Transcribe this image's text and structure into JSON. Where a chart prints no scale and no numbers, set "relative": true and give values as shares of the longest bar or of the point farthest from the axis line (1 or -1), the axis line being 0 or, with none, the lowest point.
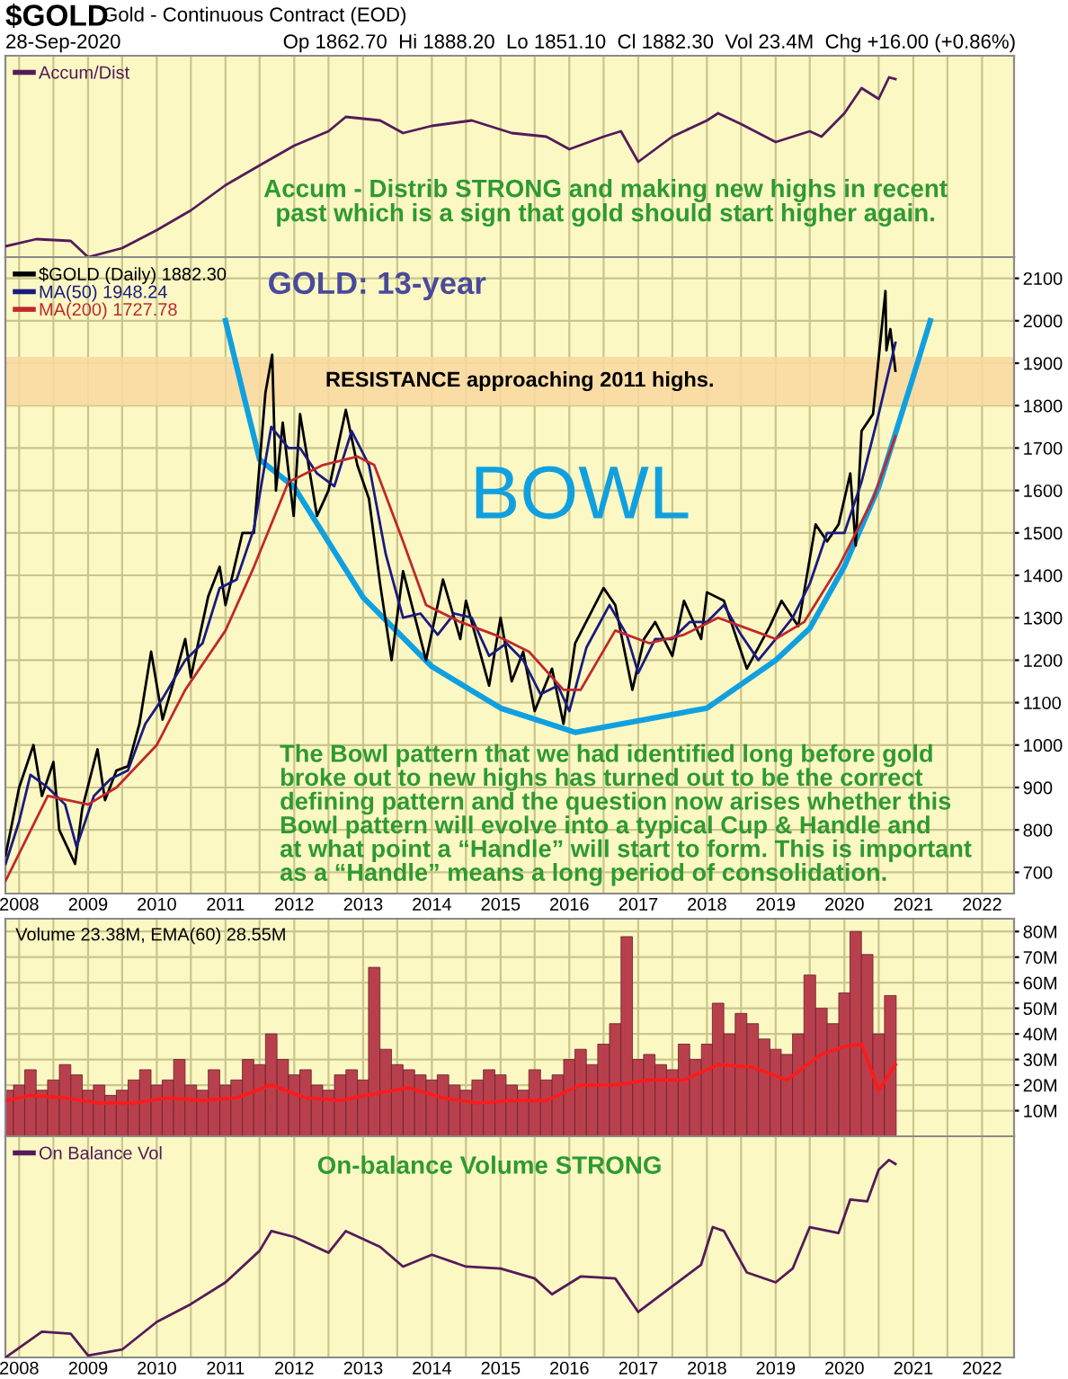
{
  "chart_data": [
    {
      "type": "line",
      "title": "$GOLD",
      "subtitle": "Gold - Continuous Contract (EOD)",
      "relative": true,
      "grid": "x",
      "legend": "top left",
      "tick_labels": false,
      "xticks": [
        {
          "value": "2008",
          "label": null
        },
        {
          "value": "2008-07",
          "label": null
        },
        {
          "value": "2009",
          "label": null
        },
        {
          "value": "2009-07",
          "label": null
        },
        {
          "value": "2010",
          "label": null
        },
        {
          "value": "2010-07",
          "label": null
        },
        {
          "value": "2011",
          "label": null
        },
        {
          "value": "2011-07",
          "label": null
        },
        {
          "value": "2012",
          "label": null
        },
        {
          "value": "2012-07",
          "label": null
        },
        {
          "value": "2013",
          "label": null
        },
        {
          "value": "2013-07",
          "label": null
        },
        {
          "value": "2014",
          "label": null
        },
        {
          "value": "2014-07",
          "label": null
        },
        {
          "value": "2015",
          "label": null
        },
        {
          "value": "2015-07",
          "label": null
        },
        {
          "value": "2016",
          "label": null
        },
        {
          "value": "2016-07",
          "label": null
        },
        {
          "value": "2017",
          "label": null
        },
        {
          "value": "2017-07",
          "label": null
        },
        {
          "value": "2018",
          "label": null
        },
        {
          "value": "2018-07",
          "label": null
        },
        {
          "value": "2019",
          "label": null
        },
        {
          "value": "2019-07",
          "label": null
        },
        {
          "value": "2020",
          "label": null
        },
        {
          "value": "2020-07",
          "label": null
        },
        {
          "value": "2021",
          "label": null
        },
        {
          "value": "2021-07",
          "label": null
        },
        {
          "value": "2022",
          "label": null
        }
      ],
      "annotations": [
        "28-Sep-2020",
        "Op 1862.70  Hi 1888.20  Lo 1851.10  Cl 1882.30  Vol 23.4M  Chg +16.00 (+0.86%)",
        "Accum - Distrib STRONG and making new highs in recent\npast which is a sign that gold should start higher again."
      ],
      "xlim": [
        "2007-10-20",
        "2022-06-20"
      ],
      "series": [
        {
          "name": "Accum/Dist",
          "color": "#551a5a",
          "x": [
            "2007-10-21",
            "2008-04",
            "2008-10",
            "2009-01",
            "2009-07",
            "2010-01",
            "2010-07",
            "2011-01",
            "2011-07",
            "2012-01",
            "2012-07",
            "2012-10",
            "2013-04",
            "2013-08",
            "2014-01",
            "2014-08",
            "2015-03",
            "2015-09",
            "2016-01",
            "2016-07",
            "2016-10",
            "2017-01",
            "2017-07",
            "2018-01",
            "2018-03",
            "2018-07",
            "2019-01",
            "2019-07",
            "2019-09",
            "2020-01",
            "2020-04",
            "2020-07",
            "2020-08-25",
            "2020-09-28"
          ],
          "values": [
            0.06,
            0.1,
            0.09,
            0,
            0.05,
            0.15,
            0.26,
            0.4,
            0.51,
            0.62,
            0.7,
            0.78,
            0.76,
            0.69,
            0.73,
            0.76,
            0.69,
            0.67,
            0.6,
            0.67,
            0.7,
            0.53,
            0.67,
            0.76,
            0.8,
            0.74,
            0.64,
            0.7,
            0.67,
            0.8,
            0.94,
            0.88,
            1.0,
            0.99
          ]
        }
      ]
    },
    {
      "type": "line",
      "ylim": [
        650,
        2150
      ],
      "yticks": [
        700,
        800,
        900,
        1000,
        1100,
        1200,
        1300,
        1400,
        1500,
        1600,
        1700,
        1800,
        1900,
        2000,
        2100
      ],
      "grid": true,
      "legend": "top left",
      "xlim": [
        "2007-10-20",
        "2022-06-20"
      ],
      "xticks": [
        {
          "value": "2008",
          "label": "2008"
        },
        {
          "value": "2008-07",
          "label": null
        },
        {
          "value": "2009",
          "label": "2009"
        },
        {
          "value": "2009-07",
          "label": null
        },
        {
          "value": "2010",
          "label": "2010"
        },
        {
          "value": "2010-07",
          "label": null
        },
        {
          "value": "2011",
          "label": "2011"
        },
        {
          "value": "2011-07",
          "label": null
        },
        {
          "value": "2012",
          "label": "2012"
        },
        {
          "value": "2012-07",
          "label": null
        },
        {
          "value": "2013",
          "label": "2013"
        },
        {
          "value": "2013-07",
          "label": null
        },
        {
          "value": "2014",
          "label": "2014"
        },
        {
          "value": "2014-07",
          "label": null
        },
        {
          "value": "2015",
          "label": "2015"
        },
        {
          "value": "2015-07",
          "label": null
        },
        {
          "value": "2016",
          "label": "2016"
        },
        {
          "value": "2016-07",
          "label": null
        },
        {
          "value": "2017",
          "label": "2017"
        },
        {
          "value": "2017-07",
          "label": null
        },
        {
          "value": "2018",
          "label": "2018"
        },
        {
          "value": "2018-07",
          "label": null
        },
        {
          "value": "2019",
          "label": "2019"
        },
        {
          "value": "2019-07",
          "label": null
        },
        {
          "value": "2020",
          "label": "2020"
        },
        {
          "value": "2020-07",
          "label": null
        },
        {
          "value": "2021",
          "label": "2021"
        },
        {
          "value": "2021-07",
          "label": null
        },
        {
          "value": "2022",
          "label": "2022"
        }
      ],
      "annotations": [
        "GOLD: 13-year",
        "BOWL",
        "The Bowl pattern that we had identified long before gold\nbroke out to new highs has turned out to be the correct\ndefining pattern and the question now arises whether this\nBowl pattern will evolve into a typical Cup & Handle and\nat what point a “Handle” will start to form. This is important\nas a “Handle” means a long period of consolidation."
      ],
      "bands": [
        {
          "axis": "y",
          "from": 1800,
          "to": 1915,
          "label": "RESISTANCE approaching 2011 highs.",
          "color": "#f8d8a0"
        }
      ],
      "series": [
        {
          "name": "$GOLD (Daily) 1882.30",
          "color": "#000000",
          "x": [
            "2007-10-21",
            "2007-12",
            "2008-01",
            "2008-03-17",
            "2008-05",
            "2008-07",
            "2008-08",
            "2008-10-24",
            "2008-12",
            "2009-02-20",
            "2009-04",
            "2009-06",
            "2009-08",
            "2009-10",
            "2009-12-02",
            "2010-02",
            "2010-04",
            "2010-06",
            "2010-07",
            "2010-10",
            "2010-12",
            "2011-01",
            "2011-04",
            "2011-06",
            "2011-08",
            "2011-09-06",
            "2011-09-26",
            "2011-11",
            "2011-12-29",
            "2012-02",
            "2012-05",
            "2012-07",
            "2012-10",
            "2012-12",
            "2013-02",
            "2013-04",
            "2013-06",
            "2013-08",
            "2013-12",
            "2014-03",
            "2014-06",
            "2014-07",
            "2014-11",
            "2015-01",
            "2015-03",
            "2015-05",
            "2015-07",
            "2015-10",
            "2015-12",
            "2016-02",
            "2016-07",
            "2016-09",
            "2016-12",
            "2017-02",
            "2017-04",
            "2017-07",
            "2017-09",
            "2017-12",
            "2018-01",
            "2018-04",
            "2018-08",
            "2018-12",
            "2019-02",
            "2019-05",
            "2019-08",
            "2019-10",
            "2019-12",
            "2020-02",
            "2020-03",
            "2020-04",
            "2020-06",
            "2020-08-06",
            "2020-08-11",
            "2020-09-01",
            "2020-09-28"
          ],
          "values": [
            740,
            830,
            900,
            1000,
            880,
            960,
            800,
            720,
            850,
            990,
            870,
            940,
            950,
            1050,
            1220,
            1060,
            1150,
            1250,
            1160,
            1350,
            1420,
            1330,
            1500,
            1500,
            1830,
            1920,
            1600,
            1760,
            1540,
            1780,
            1540,
            1600,
            1790,
            1660,
            1580,
            1380,
            1200,
            1410,
            1200,
            1390,
            1250,
            1340,
            1140,
            1300,
            1150,
            1220,
            1080,
            1180,
            1050,
            1240,
            1370,
            1330,
            1130,
            1250,
            1290,
            1210,
            1340,
            1250,
            1360,
            1340,
            1180,
            1280,
            1340,
            1280,
            1520,
            1480,
            1520,
            1640,
            1470,
            1740,
            1780,
            2070,
            1930,
            1980,
            1882
          ]
        },
        {
          "name": "MA(50) 1948.24",
          "color": "#1a1a80",
          "x": [
            "2007-10-21",
            "2008-01",
            "2008-03",
            "2008-06",
            "2008-09",
            "2008-11",
            "2009-02",
            "2009-05",
            "2009-08",
            "2009-11",
            "2010-02",
            "2010-06",
            "2010-09",
            "2010-12",
            "2011-03",
            "2011-06",
            "2011-09",
            "2011-12",
            "2012-02",
            "2012-05",
            "2012-08",
            "2012-11",
            "2013-02",
            "2013-05",
            "2013-08",
            "2013-11",
            "2014-02",
            "2014-05",
            "2014-08",
            "2014-11",
            "2015-02",
            "2015-05",
            "2015-08",
            "2015-11",
            "2016-01",
            "2016-04",
            "2016-08",
            "2016-11",
            "2017-01",
            "2017-04",
            "2017-07",
            "2017-10",
            "2018-01",
            "2018-04",
            "2018-07",
            "2018-10",
            "2019-01",
            "2019-04",
            "2019-07",
            "2019-10",
            "2020-01",
            "2020-04",
            "2020-07",
            "2020-09-28"
          ],
          "values": [
            720,
            820,
            930,
            900,
            860,
            760,
            880,
            920,
            940,
            1050,
            1110,
            1200,
            1240,
            1370,
            1390,
            1510,
            1750,
            1700,
            1700,
            1640,
            1610,
            1740,
            1660,
            1450,
            1300,
            1310,
            1260,
            1310,
            1300,
            1210,
            1240,
            1200,
            1120,
            1140,
            1080,
            1230,
            1330,
            1260,
            1170,
            1250,
            1250,
            1290,
            1290,
            1330,
            1260,
            1200,
            1250,
            1300,
            1380,
            1500,
            1500,
            1620,
            1780,
            1948
          ]
        },
        {
          "name": "MA(200) 1727.78",
          "color": "#c0282c",
          "x": [
            "2007-10-21",
            "2008-06",
            "2009-01",
            "2009-06",
            "2010-01",
            "2010-06",
            "2011-01",
            "2011-06",
            "2011-12",
            "2012-06",
            "2012-12",
            "2013-03",
            "2013-08",
            "2013-12",
            "2014-06",
            "2014-12",
            "2015-06",
            "2015-12",
            "2016-03",
            "2016-09",
            "2017-03",
            "2017-09",
            "2018-03",
            "2018-09",
            "2019-01",
            "2019-06",
            "2019-12",
            "2020-06",
            "2020-09-28"
          ],
          "values": [
            680,
            880,
            860,
            900,
            1000,
            1130,
            1270,
            1420,
            1620,
            1660,
            1680,
            1660,
            1480,
            1330,
            1290,
            1260,
            1220,
            1130,
            1130,
            1270,
            1240,
            1260,
            1300,
            1270,
            1250,
            1290,
            1420,
            1580,
            1728
          ]
        },
        {
          "color": "#10a0e0",
          "x": [
            "2011-01",
            "2011-04",
            "2011-07",
            "2012-01",
            "2013-01",
            "2014-01",
            "2015-01",
            "2016-02",
            "2018-01",
            "2019-01",
            "2019-07",
            "2020-01",
            "2020-07",
            "2021-01",
            "2021-04"
          ],
          "values": [
            2000,
            1836,
            1673,
            1608,
            1348,
            1185,
            1087,
            1030,
            1087,
            1200,
            1275,
            1421,
            1608,
            1869,
            2000
          ]
        }
      ]
    },
    {
      "type": "bar",
      "title": "Volume 23.38M, EMA(60) 28.55M",
      "ylim": [
        0,
        85
      ],
      "grid": true,
      "tick_labels": "y",
      "yticks": [
        {
          "value": 10,
          "label": "10M"
        },
        {
          "value": 20,
          "label": "20M"
        },
        {
          "value": 30,
          "label": "30M"
        },
        {
          "value": 40,
          "label": "40M"
        },
        {
          "value": 50,
          "label": "50M"
        },
        {
          "value": 60,
          "label": "60M"
        },
        {
          "value": 70,
          "label": "70M"
        },
        {
          "value": 80,
          "label": "80M"
        }
      ],
      "xlim": [
        "2007-10-20",
        "2022-06-20"
      ],
      "xticks": [
        {
          "value": "2008",
          "label": null
        },
        {
          "value": "2008-07",
          "label": null
        },
        {
          "value": "2009",
          "label": null
        },
        {
          "value": "2009-07",
          "label": null
        },
        {
          "value": "2010",
          "label": null
        },
        {
          "value": "2010-07",
          "label": null
        },
        {
          "value": "2011",
          "label": null
        },
        {
          "value": "2011-07",
          "label": null
        },
        {
          "value": "2012",
          "label": null
        },
        {
          "value": "2012-07",
          "label": null
        },
        {
          "value": "2013",
          "label": null
        },
        {
          "value": "2013-07",
          "label": null
        },
        {
          "value": "2014",
          "label": null
        },
        {
          "value": "2014-07",
          "label": null
        },
        {
          "value": "2015",
          "label": null
        },
        {
          "value": "2015-07",
          "label": null
        },
        {
          "value": "2016",
          "label": null
        },
        {
          "value": "2016-07",
          "label": null
        },
        {
          "value": "2017",
          "label": null
        },
        {
          "value": "2017-07",
          "label": null
        },
        {
          "value": "2018",
          "label": null
        },
        {
          "value": "2018-07",
          "label": null
        },
        {
          "value": "2019",
          "label": null
        },
        {
          "value": "2019-07",
          "label": null
        },
        {
          "value": "2020",
          "label": null
        },
        {
          "value": "2020-07",
          "label": null
        },
        {
          "value": "2021",
          "label": null
        },
        {
          "value": "2021-07",
          "label": null
        },
        {
          "value": "2022",
          "label": null
        }
      ],
      "series": [
        {
          "color": "#b8404c",
          "x": [
            "2007-11",
            "2008-01",
            "2008-03",
            "2008-05",
            "2008-07",
            "2008-09",
            "2008-11",
            "2009-01",
            "2009-03",
            "2009-05",
            "2009-07",
            "2009-09",
            "2009-11",
            "2010-01",
            "2010-03",
            "2010-05",
            "2010-07",
            "2010-09",
            "2010-11",
            "2011-01",
            "2011-03",
            "2011-05",
            "2011-07",
            "2011-09",
            "2011-11",
            "2012-01",
            "2012-03",
            "2012-05",
            "2012-07",
            "2012-09",
            "2012-11",
            "2013-01",
            "2013-03",
            "2013-05",
            "2013-07",
            "2013-09",
            "2013-11",
            "2014-01",
            "2014-03",
            "2014-05",
            "2014-07",
            "2014-09",
            "2014-11",
            "2015-01",
            "2015-03",
            "2015-05",
            "2015-07",
            "2015-09",
            "2015-11",
            "2016-01",
            "2016-03",
            "2016-05",
            "2016-07",
            "2016-09",
            "2016-11",
            "2017-01",
            "2017-03",
            "2017-05",
            "2017-07",
            "2017-09",
            "2017-11",
            "2018-01",
            "2018-03",
            "2018-05",
            "2018-07",
            "2018-09",
            "2018-11",
            "2019-01",
            "2019-03",
            "2019-05",
            "2019-07",
            "2019-09",
            "2019-11",
            "2020-01",
            "2020-03",
            "2020-05",
            "2020-07",
            "2020-09"
          ],
          "values": [
            18,
            20,
            26,
            18,
            22,
            28,
            24,
            18,
            20,
            16,
            18,
            22,
            26,
            20,
            22,
            30,
            20,
            18,
            26,
            20,
            22,
            30,
            28,
            40,
            30,
            24,
            26,
            20,
            18,
            24,
            26,
            22,
            66,
            34,
            28,
            26,
            24,
            22,
            24,
            20,
            18,
            22,
            26,
            24,
            20,
            18,
            26,
            22,
            24,
            30,
            34,
            28,
            36,
            44,
            78,
            30,
            32,
            28,
            26,
            36,
            30,
            36,
            52,
            40,
            48,
            44,
            38,
            34,
            32,
            40,
            63,
            50,
            44,
            56,
            80,
            71,
            40,
            55
          ]
        },
        {
          "type": "line",
          "color": "#ff1a1a",
          "x": [
            "2007-11",
            "2008-03",
            "2008-09",
            "2009-03",
            "2009-09",
            "2010-03",
            "2010-09",
            "2011-03",
            "2011-09",
            "2012-03",
            "2012-09",
            "2013-04",
            "2013-09",
            "2014-03",
            "2014-09",
            "2015-03",
            "2015-09",
            "2016-03",
            "2016-09",
            "2017-03",
            "2017-09",
            "2018-03",
            "2018-09",
            "2019-03",
            "2019-09",
            "2020-01",
            "2020-04",
            "2020-07",
            "2020-09-28"
          ],
          "values": [
            14,
            16,
            15,
            13,
            13,
            15,
            14,
            15,
            20,
            15,
            14,
            17,
            19,
            15,
            13,
            14,
            14,
            20,
            20,
            22,
            22,
            28,
            27,
            22,
            32,
            35,
            36,
            18,
            28
          ]
        }
      ]
    },
    {
      "type": "line",
      "relative": true,
      "grid": "x",
      "legend": "top left",
      "tick_labels": "x",
      "annotations": [
        "On-balance Volume STRONG"
      ],
      "xlim": [
        "2007-10-20",
        "2022-06-20"
      ],
      "xticks": [
        {
          "value": "2008",
          "label": "2008"
        },
        {
          "value": "2008-07",
          "label": null
        },
        {
          "value": "2009",
          "label": "2009"
        },
        {
          "value": "2009-07",
          "label": null
        },
        {
          "value": "2010",
          "label": "2010"
        },
        {
          "value": "2010-07",
          "label": null
        },
        {
          "value": "2011",
          "label": "2011"
        },
        {
          "value": "2011-07",
          "label": null
        },
        {
          "value": "2012",
          "label": "2012"
        },
        {
          "value": "2012-07",
          "label": null
        },
        {
          "value": "2013",
          "label": "2013"
        },
        {
          "value": "2013-07",
          "label": null
        },
        {
          "value": "2014",
          "label": "2014"
        },
        {
          "value": "2014-07",
          "label": null
        },
        {
          "value": "2015",
          "label": "2015"
        },
        {
          "value": "2015-07",
          "label": null
        },
        {
          "value": "2016",
          "label": "2016"
        },
        {
          "value": "2016-07",
          "label": null
        },
        {
          "value": "2017",
          "label": "2017"
        },
        {
          "value": "2017-07",
          "label": null
        },
        {
          "value": "2018",
          "label": "2018"
        },
        {
          "value": "2018-07",
          "label": null
        },
        {
          "value": "2019",
          "label": "2019"
        },
        {
          "value": "2019-07",
          "label": null
        },
        {
          "value": "2020",
          "label": "2020"
        },
        {
          "value": "2020-07",
          "label": null
        },
        {
          "value": "2021",
          "label": "2021"
        },
        {
          "value": "2021-07",
          "label": null
        },
        {
          "value": "2022",
          "label": "2022"
        }
      ],
      "series": [
        {
          "name": "On Balance Vol",
          "color": "#551a5a",
          "x": [
            "2007-10-21",
            "2008-05",
            "2008-10",
            "2009-01",
            "2009-07",
            "2010-01",
            "2010-07",
            "2011-01",
            "2011-07",
            "2011-09",
            "2012-01",
            "2012-07",
            "2012-10",
            "2013-04",
            "2013-08",
            "2014-01",
            "2014-07",
            "2015-01",
            "2015-07",
            "2015-10",
            "2016-03",
            "2016-09",
            "2017-01",
            "2017-07",
            "2017-12",
            "2018-02",
            "2018-04",
            "2018-08",
            "2019-01",
            "2019-04",
            "2019-07",
            "2019-12",
            "2020-02",
            "2020-05",
            "2020-07",
            "2020-08-25",
            "2020-09-28"
          ],
          "values": [
            0,
            0.13,
            0.12,
            0.01,
            0.04,
            0.18,
            0.27,
            0.38,
            0.54,
            0.64,
            0.61,
            0.53,
            0.64,
            0.56,
            0.46,
            0.52,
            0.46,
            0.45,
            0.4,
            0.32,
            0.41,
            0.4,
            0.23,
            0.36,
            0.47,
            0.66,
            0.64,
            0.43,
            0.38,
            0.45,
            0.66,
            0.63,
            0.8,
            0.79,
            0.95,
            1.0,
            0.98
          ]
        }
      ]
    }
  ]
}
